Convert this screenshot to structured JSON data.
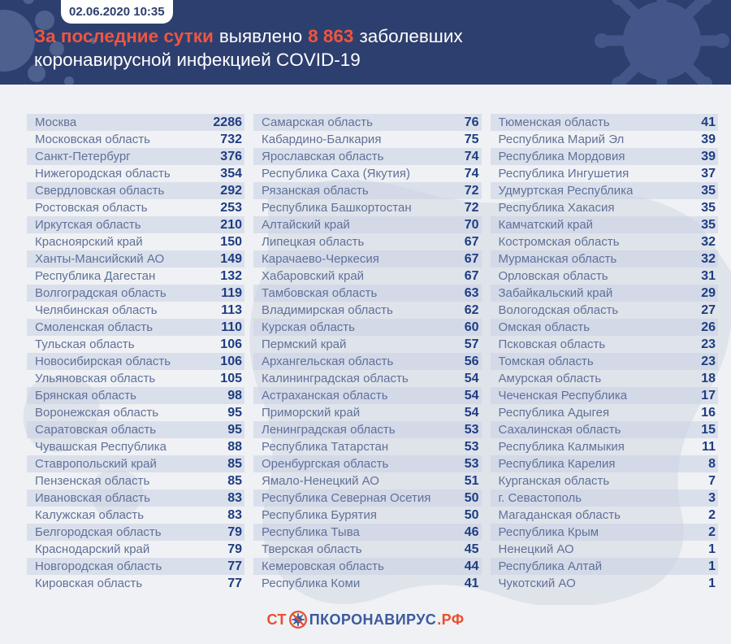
{
  "header": {
    "datetime": "02.06.2020 10:35",
    "title": {
      "accent": "За последние сутки",
      "mid": "выявлено",
      "number": "8 863",
      "tail": "заболевших",
      "line2": "коронавирусной инфекцией COVID-19"
    }
  },
  "chart_data": {
    "type": "table",
    "title": "За последние сутки выявлено 8 863 заболевших коронавирусной инфекцией COVID-19",
    "timestamp": "02.06.2020 10:35",
    "total_new_cases": 8863,
    "columns": [
      {
        "rows": [
          {
            "region": "Москва",
            "value": 2286
          },
          {
            "region": "Московская область",
            "value": 732
          },
          {
            "region": "Санкт-Петербург",
            "value": 376
          },
          {
            "region": "Нижегородская область",
            "value": 354
          },
          {
            "region": "Свердловская область",
            "value": 292
          },
          {
            "region": "Ростовская область",
            "value": 253
          },
          {
            "region": "Иркутская область",
            "value": 210
          },
          {
            "region": "Красноярский край",
            "value": 150
          },
          {
            "region": "Ханты-Мансийский АО",
            "value": 149
          },
          {
            "region": "Республика Дагестан",
            "value": 132
          },
          {
            "region": "Волгоградская область",
            "value": 119
          },
          {
            "region": "Челябинская область",
            "value": 113
          },
          {
            "region": "Смоленская область",
            "value": 110
          },
          {
            "region": "Тульская область",
            "value": 106
          },
          {
            "region": "Новосибирская область",
            "value": 106
          },
          {
            "region": "Ульяновская область",
            "value": 105
          },
          {
            "region": "Брянская область",
            "value": 98
          },
          {
            "region": "Воронежская область",
            "value": 95
          },
          {
            "region": "Саратовская область",
            "value": 95
          },
          {
            "region": "Чувашская Республика",
            "value": 88
          },
          {
            "region": "Ставропольский край",
            "value": 85
          },
          {
            "region": "Пензенская область",
            "value": 85
          },
          {
            "region": "Ивановская область",
            "value": 83
          },
          {
            "region": "Калужская область",
            "value": 83
          },
          {
            "region": "Белгородская область",
            "value": 79
          },
          {
            "region": "Краснодарский край",
            "value": 79
          },
          {
            "region": "Новгородская область",
            "value": 77
          },
          {
            "region": "Кировская область",
            "value": 77
          }
        ]
      },
      {
        "rows": [
          {
            "region": "Самарская область",
            "value": 76
          },
          {
            "region": "Кабардино-Балкария",
            "value": 75
          },
          {
            "region": "Ярославская область",
            "value": 74
          },
          {
            "region": "Республика Саха (Якутия)",
            "value": 74
          },
          {
            "region": "Рязанская область",
            "value": 72
          },
          {
            "region": "Республика Башкортостан",
            "value": 72
          },
          {
            "region": "Алтайский край",
            "value": 70
          },
          {
            "region": "Липецкая область",
            "value": 67
          },
          {
            "region": "Карачаево-Черкесия",
            "value": 67
          },
          {
            "region": "Хабаровский край",
            "value": 67
          },
          {
            "region": "Тамбовская область",
            "value": 63
          },
          {
            "region": "Владимирская область",
            "value": 62
          },
          {
            "region": "Курская область",
            "value": 60
          },
          {
            "region": "Пермский край",
            "value": 57
          },
          {
            "region": "Архангельская область",
            "value": 56
          },
          {
            "region": "Калининградская область",
            "value": 54
          },
          {
            "region": "Астраханская область",
            "value": 54
          },
          {
            "region": "Приморский край",
            "value": 54
          },
          {
            "region": "Ленинградская область",
            "value": 53
          },
          {
            "region": "Республика Татарстан",
            "value": 53
          },
          {
            "region": "Оренбургская область",
            "value": 53
          },
          {
            "region": "Ямало-Ненецкий АО",
            "value": 51
          },
          {
            "region": "Республика Северная Осетия",
            "value": 50
          },
          {
            "region": "Республика Бурятия",
            "value": 50
          },
          {
            "region": "Республика Тыва",
            "value": 46
          },
          {
            "region": "Тверская область",
            "value": 45
          },
          {
            "region": "Кемеровская область",
            "value": 44
          },
          {
            "region": "Республика Коми",
            "value": 41
          }
        ]
      },
      {
        "rows": [
          {
            "region": "Тюменская область",
            "value": 41
          },
          {
            "region": "Республика Марий Эл",
            "value": 39
          },
          {
            "region": "Республика Мордовия",
            "value": 39
          },
          {
            "region": "Республика Ингушетия",
            "value": 37
          },
          {
            "region": "Удмуртская Республика",
            "value": 35
          },
          {
            "region": "Республика Хакасия",
            "value": 35
          },
          {
            "region": "Камчатский край",
            "value": 35
          },
          {
            "region": "Костромская область",
            "value": 32
          },
          {
            "region": "Мурманская область",
            "value": 32
          },
          {
            "region": "Орловская область",
            "value": 31
          },
          {
            "region": "Забайкальский край",
            "value": 29
          },
          {
            "region": "Вологодская область",
            "value": 27
          },
          {
            "region": "Омская область",
            "value": 26
          },
          {
            "region": "Псковская область",
            "value": 23
          },
          {
            "region": "Томская область",
            "value": 23
          },
          {
            "region": "Амурская область",
            "value": 18
          },
          {
            "region": "Чеченская Республика",
            "value": 17
          },
          {
            "region": "Республика Адыгея",
            "value": 16
          },
          {
            "region": "Сахалинская область",
            "value": 15
          },
          {
            "region": "Республика Калмыкия",
            "value": 11
          },
          {
            "region": "Республика Карелия",
            "value": 8
          },
          {
            "region": "Курганская область",
            "value": 7
          },
          {
            "region": "г. Севастополь",
            "value": 3
          },
          {
            "region": "Магаданская область",
            "value": 2
          },
          {
            "region": "Республика Крым",
            "value": 2
          },
          {
            "region": "Ненецкий АО",
            "value": 1
          },
          {
            "region": "Республика Алтай",
            "value": 1
          },
          {
            "region": "Чукотский АО",
            "value": 1
          }
        ]
      }
    ]
  },
  "footer": {
    "logo": {
      "prefix": "СТ",
      "middle": "ПКОРОНАВИРУС",
      "suffix": ".РФ"
    }
  },
  "colors": {
    "header_bg": "#2d3f6e",
    "accent_orange": "#ef5540",
    "page_bg": "#eff1f4",
    "row_stripe": "#dbe1ec",
    "region_text": "#60719a",
    "value_text": "#1e3d82",
    "logo_blue": "#3d5a9e",
    "logo_orange": "#e8502f"
  }
}
